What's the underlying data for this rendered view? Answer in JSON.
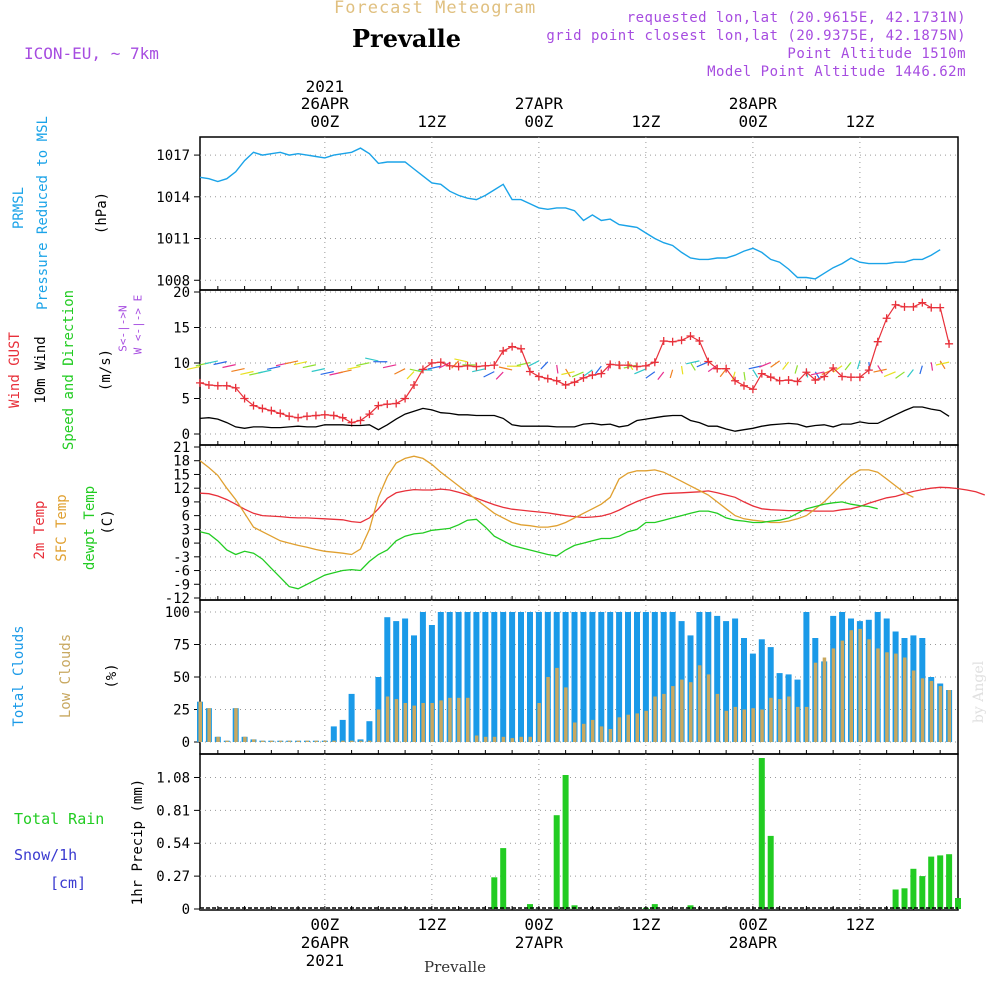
{
  "header": {
    "product": "Forecast Meteogram",
    "station": "Prevalle",
    "model": "ICON-EU, ~ 7km",
    "requested": "requested lon,lat (20.9615E, 42.1731N)",
    "grid_point": "grid point closest lon,lat (20.9375E, 42.1875N)",
    "point_altitude": "Point Altitude 1510m",
    "model_altitude": "Model Point Altitude 1446.62m",
    "footer_station": "Prevalle",
    "credit": "by Angel"
  },
  "time_axis": {
    "top_labels": [
      {
        "line1": "2021",
        "line2": "26APR",
        "line3": "00Z"
      },
      {
        "line1": "",
        "line2": "",
        "line3": "12Z"
      },
      {
        "line1": "",
        "line2": "27APR",
        "line3": "00Z"
      },
      {
        "line1": "",
        "line2": "",
        "line3": "12Z"
      },
      {
        "line1": "",
        "line2": "28APR",
        "line3": "00Z"
      },
      {
        "line1": "",
        "line2": "",
        "line3": "12Z"
      }
    ],
    "bottom_labels": [
      {
        "line1": "00Z",
        "line2": "26APR",
        "line3": "2021"
      },
      {
        "line1": "12Z",
        "line2": "",
        "line3": ""
      },
      {
        "line1": "00Z",
        "line2": "27APR",
        "line3": ""
      },
      {
        "line1": "12Z",
        "line2": "",
        "line3": ""
      },
      {
        "line1": "00Z",
        "line2": "28APR",
        "line3": ""
      },
      {
        "line1": "12Z",
        "line2": "",
        "line3": ""
      }
    ]
  },
  "panel_labels": {
    "prmsl": "PRMSL",
    "pressure": "Pressure Reduced to MSL",
    "hpa": "(hPa)",
    "gust": "Wind GUST",
    "wind10": "10m Wind",
    "speed_dir": "Speed and Direction",
    "ms": "(m/s)",
    "compass_w": "W <-|-> E",
    "compass_s": "S<-|->N",
    "t2m": "2m Temp",
    "sfc": "SFC Temp",
    "dewpt": "dewpt Temp",
    "c": "(C)",
    "total_clouds": "Total Clouds",
    "low_clouds": "Low Clouds",
    "pct": "(%)",
    "total_rain": "Total  Rain",
    "snow": "Snow/1h",
    "cm": "[cm]",
    "precip": "1hr Precip (mm)"
  },
  "colors": {
    "pressure": "#1aa3e8",
    "gust": "#e8303a",
    "wind": "#000000",
    "t2m": "#e8303a",
    "sfc": "#e0a030",
    "dewpt": "#22cc22",
    "total_clouds": "#1a9ae8",
    "low_clouds": "#c8a860",
    "rain": "#22cc22",
    "snow": "#3a3ad0",
    "title": "#e0c080",
    "info": "#a64ce0"
  },
  "chart_data": [
    {
      "type": "line",
      "name": "pressure",
      "ylabel": "(hPa)",
      "yticks": [
        1008,
        1011,
        1014,
        1017
      ],
      "ylim": [
        1007.3,
        1018.3
      ],
      "start_hour": -14,
      "step_hours": 1,
      "series": [
        {
          "name": "PRMSL",
          "values": [
            1015.4,
            1015.3,
            1015.1,
            1015.3,
            1015.8,
            1016.6,
            1017.2,
            1017.0,
            1017.1,
            1017.2,
            1017.0,
            1017.1,
            1017.0,
            1016.9,
            1016.8,
            1017.0,
            1017.1,
            1017.2,
            1017.5,
            1017.1,
            1016.4,
            1016.5,
            1016.5,
            1016.5,
            1016.0,
            1015.5,
            1015.0,
            1014.9,
            1014.4,
            1014.1,
            1013.9,
            1013.8,
            1014.1,
            1014.5,
            1014.9,
            1013.8,
            1013.8,
            1013.5,
            1013.2,
            1013.1,
            1013.2,
            1013.2,
            1013.0,
            1012.3,
            1012.7,
            1012.3,
            1012.4,
            1012.0,
            1011.9,
            1011.8,
            1011.4,
            1011.0,
            1010.7,
            1010.5,
            1010.0,
            1009.6,
            1009.5,
            1009.5,
            1009.6,
            1009.6,
            1009.8,
            1010.1,
            1010.3,
            1010.0,
            1009.5,
            1009.3,
            1008.8,
            1008.2,
            1008.2,
            1008.1,
            1008.5,
            1008.9,
            1009.2,
            1009.6,
            1009.3,
            1009.2,
            1009.2,
            1009.2,
            1009.3,
            1009.3,
            1009.5,
            1009.5,
            1009.8,
            1010.2
          ]
        }
      ]
    },
    {
      "type": "line",
      "name": "wind",
      "ylabel": "(m/s)",
      "yticks": [
        0,
        5,
        10,
        15,
        20
      ],
      "ylim": [
        0,
        20
      ],
      "start_hour": -14,
      "step_hours": 1,
      "series": [
        {
          "name": "Wind GUST",
          "values": [
            7.2,
            6.9,
            6.8,
            6.8,
            6.5,
            5.0,
            4.0,
            3.6,
            3.3,
            2.9,
            2.5,
            2.3,
            2.5,
            2.6,
            2.7,
            2.6,
            2.3,
            1.6,
            1.9,
            2.8,
            4.0,
            4.2,
            4.3,
            5.0,
            6.9,
            9.1,
            10.0,
            10.1,
            9.6,
            9.5,
            9.6,
            9.5,
            9.6,
            9.7,
            11.7,
            12.3,
            12.0,
            8.8,
            8.1,
            7.8,
            7.5,
            6.9,
            7.3,
            7.9,
            8.3,
            8.5,
            9.8,
            9.7,
            9.7,
            9.5,
            9.6,
            10.1,
            13.1,
            13.0,
            13.2,
            13.8,
            13.1,
            10.2,
            9.2,
            9.2,
            7.5,
            6.8,
            6.3,
            8.5,
            8.0,
            7.5,
            7.6,
            7.4,
            8.7,
            7.6,
            8.1,
            9.3,
            8.1,
            8.0,
            8.0,
            9.0,
            13.0,
            16.3,
            18.2,
            17.9,
            17.9,
            18.5,
            17.8,
            17.8,
            12.7
          ]
        },
        {
          "name": "10m Wind",
          "values": [
            2.2,
            2.3,
            2.1,
            1.6,
            1.0,
            0.8,
            1.0,
            1.0,
            0.9,
            0.9,
            1.0,
            1.1,
            1.0,
            1.0,
            1.3,
            1.3,
            1.3,
            1.2,
            1.2,
            1.3,
            0.6,
            1.3,
            2.1,
            2.8,
            3.2,
            3.6,
            3.4,
            3.0,
            2.9,
            2.7,
            2.7,
            2.6,
            2.6,
            2.6,
            2.2,
            1.3,
            1.1,
            1.1,
            1.1,
            1.1,
            1.0,
            1.0,
            1.0,
            1.4,
            1.5,
            1.3,
            1.4,
            1.0,
            1.2,
            1.9,
            2.1,
            2.3,
            2.5,
            2.6,
            2.6,
            1.9,
            1.6,
            1.1,
            1.1,
            0.7,
            0.4,
            0.6,
            0.8,
            1.1,
            1.3,
            1.4,
            1.5,
            1.4,
            1.0,
            1.2,
            1.3,
            1.0,
            1.4,
            1.4,
            1.7,
            1.5,
            1.5,
            2.1,
            2.7,
            3.3,
            3.8,
            3.8,
            3.5,
            3.3,
            2.5
          ]
        }
      ]
    },
    {
      "type": "line",
      "name": "temperature",
      "ylabel": "(C)",
      "yticks": [
        -12,
        -9,
        -6,
        -3,
        0,
        3,
        6,
        9,
        12,
        15,
        18,
        21
      ],
      "ylim": [
        -12,
        21
      ],
      "start_hour": -14,
      "step_hours": 1,
      "series": [
        {
          "name": "2m Temp",
          "values": [
            10.9,
            10.8,
            10.3,
            9.5,
            8.5,
            7.4,
            6.5,
            6.0,
            5.9,
            5.8,
            5.6,
            5.5,
            5.5,
            5.4,
            5.3,
            5.2,
            5.1,
            4.7,
            4.5,
            5.5,
            7.5,
            9.8,
            11.0,
            11.4,
            11.7,
            11.6,
            11.6,
            11.8,
            11.6,
            11.1,
            10.5,
            9.8,
            9.1,
            8.4,
            7.8,
            7.4,
            7.2,
            7.0,
            6.8,
            6.6,
            6.3,
            6.0,
            5.8,
            5.6,
            5.7,
            5.9,
            6.4,
            7.2,
            8.2,
            9.1,
            9.8,
            10.4,
            10.8,
            10.9,
            11.0,
            11.1,
            11.2,
            11.4,
            11.0,
            10.5,
            10.0,
            9.0,
            8.1,
            7.5,
            7.3,
            7.2,
            7.1,
            7.1,
            7.1,
            7.0,
            7.0,
            7.0,
            7.3,
            7.5,
            8.0,
            8.7,
            9.3,
            9.9,
            10.2,
            10.8,
            11.3,
            11.7,
            12.0,
            12.2,
            12.1,
            11.9,
            11.6,
            11.2,
            10.5
          ]
        },
        {
          "name": "SFC Temp",
          "values": [
            18.0,
            16.5,
            14.8,
            12.0,
            9.5,
            6.5,
            3.5,
            2.5,
            1.5,
            0.5,
            0.0,
            -0.5,
            -0.9,
            -1.4,
            -1.8,
            -2.0,
            -2.2,
            -2.5,
            -1.3,
            3.0,
            10.0,
            14.5,
            17.5,
            18.5,
            19.0,
            18.5,
            17.2,
            15.5,
            14.0,
            12.5,
            11.0,
            9.5,
            8.0,
            6.5,
            5.5,
            4.5,
            4.0,
            3.8,
            3.5,
            3.5,
            3.8,
            4.5,
            5.5,
            6.5,
            7.5,
            8.5,
            10.0,
            14.0,
            15.3,
            15.8,
            15.8,
            16.0,
            15.5,
            14.5,
            13.5,
            12.5,
            11.5,
            10.5,
            9.0,
            7.5,
            6.0,
            5.3,
            5.0,
            4.8,
            4.5,
            4.5,
            4.8,
            5.3,
            6.0,
            7.5,
            9.0,
            11.0,
            13.0,
            14.8,
            16.0,
            16.0,
            15.5,
            14.0,
            12.5,
            11.0,
            10.0
          ]
        },
        {
          "name": "dewpt Temp",
          "values": [
            2.5,
            2.0,
            0.5,
            -1.5,
            -2.5,
            -1.8,
            -2.2,
            -3.5,
            -5.5,
            -7.5,
            -9.5,
            -10.0,
            -9.0,
            -8.0,
            -7.0,
            -6.5,
            -6.0,
            -5.8,
            -6.0,
            -4.0,
            -2.5,
            -1.5,
            0.5,
            1.5,
            2.0,
            2.2,
            2.8,
            3.0,
            3.2,
            4.0,
            5.0,
            5.2,
            3.5,
            1.5,
            0.5,
            -0.5,
            -1.0,
            -1.5,
            -2.0,
            -2.5,
            -2.8,
            -1.5,
            -0.5,
            0.0,
            0.5,
            1.0,
            1.0,
            1.5,
            2.5,
            3.0,
            4.5,
            4.5,
            5.0,
            5.5,
            6.0,
            6.5,
            7.0,
            7.0,
            6.5,
            5.5,
            5.0,
            4.8,
            4.5,
            4.5,
            4.8,
            5.0,
            5.5,
            6.5,
            7.5,
            8.0,
            8.5,
            8.8,
            9.0,
            8.5,
            8.2,
            8.0,
            7.5
          ]
        }
      ]
    },
    {
      "type": "bar",
      "name": "clouds",
      "ylabel": "(%)",
      "yticks": [
        0,
        25,
        50,
        75,
        100
      ],
      "ylim": [
        0,
        100
      ],
      "start_hour": -14,
      "step_hours": 1,
      "series": [
        {
          "name": "Total Clouds",
          "values": [
            31,
            26,
            4,
            1,
            26,
            4,
            2,
            1,
            1,
            1,
            1,
            1,
            1,
            1,
            1,
            12,
            17,
            37,
            2,
            16,
            50,
            96,
            93,
            95,
            82,
            100,
            90,
            100,
            100,
            100,
            100,
            100,
            100,
            100,
            100,
            100,
            100,
            100,
            100,
            100,
            100,
            100,
            100,
            100,
            100,
            100,
            100,
            100,
            100,
            100,
            100,
            100,
            100,
            100,
            93,
            82,
            100,
            100,
            97,
            93,
            95,
            80,
            68,
            79,
            73,
            53,
            52,
            48,
            100,
            80,
            62,
            97,
            100,
            95,
            93,
            94,
            100,
            95,
            85,
            80,
            82,
            80,
            50,
            45,
            40
          ]
        },
        {
          "name": "Low Clouds",
          "values": [
            31,
            26,
            4,
            1,
            26,
            4,
            2,
            1,
            1,
            1,
            1,
            1,
            1,
            1,
            1,
            1,
            1,
            1,
            1,
            1,
            25,
            35,
            33,
            30,
            28,
            30,
            30,
            32,
            34,
            34,
            34,
            5,
            4,
            4,
            4,
            3,
            4,
            4,
            30,
            50,
            57,
            42,
            15,
            14,
            17,
            12,
            10,
            19,
            21,
            22,
            24,
            35,
            37,
            43,
            48,
            46,
            59,
            52,
            37,
            24,
            27,
            25,
            26,
            25,
            34,
            33,
            35,
            27,
            27,
            61,
            65,
            72,
            78,
            86,
            87,
            79,
            72,
            69,
            68,
            65,
            55,
            49,
            47,
            43,
            40
          ]
        }
      ]
    },
    {
      "type": "bar",
      "name": "precip",
      "ylabel": "1hr Precip (mm)",
      "yticks": [
        0,
        0.27,
        0.54,
        0.81,
        1.08
      ],
      "ylim": [
        0,
        1.24
      ],
      "start_hour": -14,
      "step_hours": 1,
      "series": [
        {
          "name": "Total Rain",
          "values": [
            0,
            0,
            0,
            0,
            0,
            0,
            0,
            0,
            0,
            0,
            0,
            0,
            0,
            0,
            0,
            0,
            0,
            0,
            0,
            0,
            0,
            0,
            0,
            0,
            0,
            0,
            0,
            0,
            0,
            0,
            0,
            0,
            0,
            0.26,
            0.5,
            0,
            0,
            0.04,
            0,
            0,
            0.77,
            1.1,
            0.03,
            0,
            0,
            0,
            0,
            0,
            0,
            0,
            0.01,
            0.04,
            0,
            0,
            0,
            0.03,
            0,
            0,
            0,
            0,
            0,
            0,
            0,
            1.24,
            0.6,
            0,
            0,
            0,
            0,
            0,
            0,
            0,
            0,
            0,
            0,
            0,
            0,
            0,
            0.16,
            0.17,
            0.33,
            0.27,
            0.43,
            0.44,
            0.45,
            0.09
          ]
        }
      ]
    }
  ]
}
